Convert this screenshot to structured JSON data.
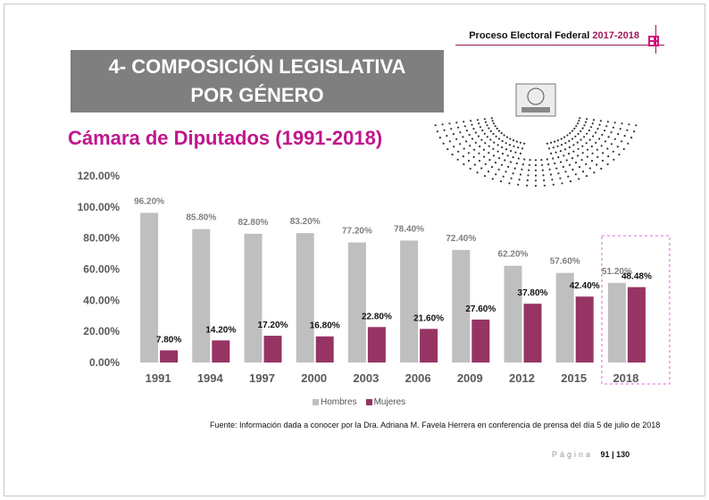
{
  "header": {
    "text": "Proceso Electoral Federal",
    "year": "2017-2018"
  },
  "title": "4-  COMPOSICIÓN LEGISLATIVA POR GÉNERO",
  "subtitle": "Cámara de Diputados (1991-2018)",
  "chart_data": {
    "type": "bar",
    "categories": [
      "1991",
      "1994",
      "1997",
      "2000",
      "2003",
      "2006",
      "2009",
      "2012",
      "2015",
      "2018"
    ],
    "series": [
      {
        "name": "Hombres",
        "color": "#bfbfbf",
        "values": [
          96.2,
          85.8,
          82.8,
          83.2,
          77.2,
          78.4,
          72.4,
          62.2,
          57.6,
          51.2
        ],
        "labels": [
          "96.20%",
          "85.80%",
          "82.80%",
          "83.20%",
          "77.20%",
          "78.40%",
          "72.40%",
          "62.20%",
          "57.60%",
          "51.20%"
        ]
      },
      {
        "name": "Mujeres",
        "color": "#963464",
        "values": [
          7.8,
          14.2,
          17.2,
          16.8,
          22.8,
          21.6,
          27.6,
          37.8,
          42.4,
          48.48
        ],
        "labels": [
          "7.80%",
          "14.20%",
          "17.20%",
          "16.80%",
          "22.80%",
          "21.60%",
          "27.60%",
          "37.80%",
          "42.40%",
          "48.48%"
        ]
      }
    ],
    "yticks": [
      "0.00%",
      "20.00%",
      "40.00%",
      "60.00%",
      "80.00%",
      "100.00%",
      "120.00%"
    ],
    "ylim": [
      0,
      120
    ],
    "highlight_category": "2018",
    "legend_position": "bottom"
  },
  "legend": {
    "hombres": "Hombres",
    "mujeres": "Mujeres"
  },
  "source": "Fuente: Información dada a conocer por la Dra. Adriana M. Favela Herrera en conferencia de prensa del día 5 de julio de 2018",
  "footer": {
    "pagina": "Página",
    "current": "91",
    "separator": "|",
    "total": "130"
  }
}
